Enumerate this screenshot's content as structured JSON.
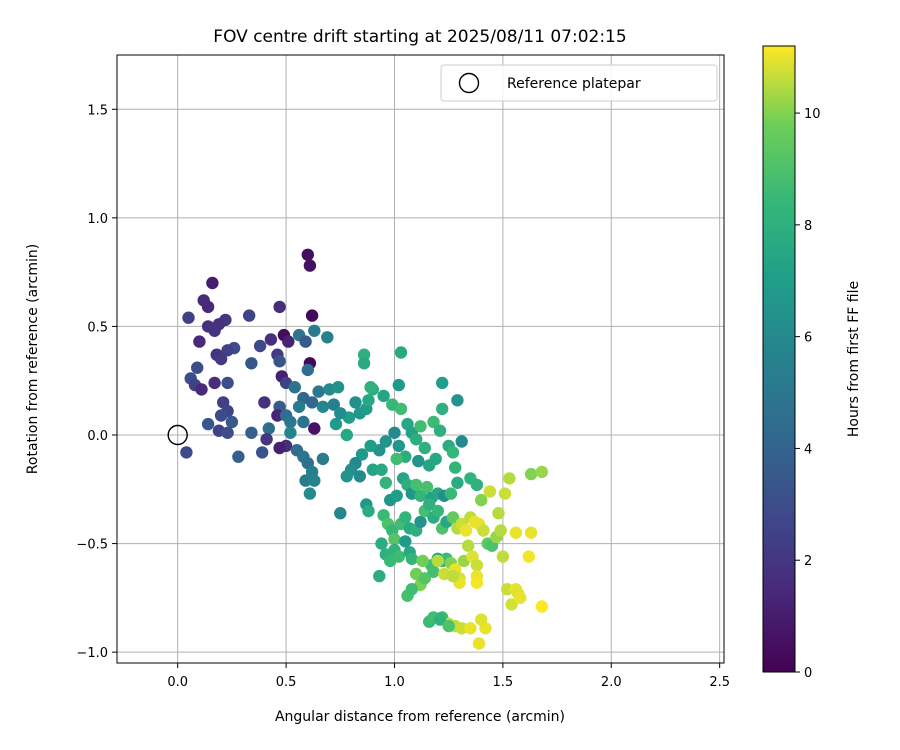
{
  "chart_data": {
    "type": "scatter",
    "title": "FOV centre drift starting at 2025/08/11 07:02:15",
    "xlabel": "Angular distance from reference (arcmin)",
    "ylabel": "Rotation from reference (arcmin)",
    "xlim": [
      -0.28,
      2.52
    ],
    "ylim": [
      -1.05,
      1.75
    ],
    "xticks": [
      0.0,
      0.5,
      1.0,
      1.5,
      2.0,
      2.5
    ],
    "xtick_labels": [
      "0.0",
      "0.5",
      "1.0",
      "1.5",
      "2.0",
      "2.5"
    ],
    "yticks": [
      -1.0,
      -0.5,
      0.0,
      0.5,
      1.0,
      1.5
    ],
    "ytick_labels": [
      "−1.0",
      "−0.5",
      "0.0",
      "0.5",
      "1.0",
      "1.5"
    ],
    "grid": true,
    "colormap": "viridis",
    "colorbar": {
      "label": "Hours from first FF file",
      "range": [
        0,
        11.2
      ],
      "ticks": [
        0,
        2,
        4,
        6,
        8,
        10
      ],
      "tick_labels": [
        "0",
        "2",
        "4",
        "6",
        "8",
        "10"
      ]
    },
    "legend": {
      "position": "top-right",
      "label": "Reference platepar"
    },
    "reference_point": {
      "x": 0.0,
      "y": 0.0
    },
    "points": [
      [
        0.6,
        0.83,
        0.5
      ],
      [
        0.61,
        0.78,
        0.6
      ],
      [
        0.16,
        0.7,
        1.0
      ],
      [
        0.12,
        0.62,
        1.5
      ],
      [
        0.14,
        0.59,
        1.4
      ],
      [
        0.47,
        0.59,
        1.6
      ],
      [
        0.05,
        0.54,
        2.5
      ],
      [
        0.62,
        0.55,
        0.3
      ],
      [
        0.22,
        0.53,
        2.0
      ],
      [
        0.33,
        0.55,
        2.6
      ],
      [
        0.19,
        0.51,
        1.8
      ],
      [
        0.14,
        0.5,
        1.7
      ],
      [
        0.17,
        0.48,
        1.9
      ],
      [
        0.49,
        0.46,
        0.4
      ],
      [
        0.43,
        0.44,
        1.7
      ],
      [
        0.56,
        0.46,
        4.9
      ],
      [
        0.59,
        0.43,
        3.5
      ],
      [
        0.51,
        0.43,
        1.2
      ],
      [
        0.1,
        0.43,
        1.5
      ],
      [
        0.38,
        0.41,
        2.8
      ],
      [
        0.63,
        0.48,
        5.2
      ],
      [
        0.69,
        0.45,
        5.5
      ],
      [
        0.26,
        0.4,
        3.0
      ],
      [
        0.23,
        0.39,
        2.5
      ],
      [
        0.18,
        0.37,
        1.9
      ],
      [
        0.2,
        0.35,
        2.2
      ],
      [
        0.46,
        0.37,
        2.2
      ],
      [
        0.47,
        0.34,
        3.3
      ],
      [
        0.34,
        0.33,
        3.4
      ],
      [
        0.09,
        0.31,
        3.0
      ],
      [
        0.61,
        0.33,
        0.2
      ],
      [
        0.06,
        0.26,
        3.1
      ],
      [
        0.08,
        0.23,
        2.5
      ],
      [
        0.11,
        0.21,
        1.5
      ],
      [
        0.17,
        0.24,
        1.6
      ],
      [
        0.23,
        0.24,
        3.0
      ],
      [
        0.48,
        0.27,
        1.1
      ],
      [
        0.5,
        0.24,
        2.5
      ],
      [
        0.6,
        0.3,
        4.5
      ],
      [
        0.65,
        0.2,
        5.0
      ],
      [
        0.7,
        0.21,
        6.0
      ],
      [
        0.54,
        0.22,
        4.8
      ],
      [
        0.4,
        0.15,
        1.8
      ],
      [
        0.58,
        0.17,
        4.2
      ],
      [
        0.56,
        0.13,
        5.3
      ],
      [
        0.62,
        0.15,
        4.1
      ],
      [
        0.67,
        0.13,
        5.8
      ],
      [
        0.72,
        0.14,
        5.5
      ],
      [
        0.21,
        0.15,
        2.4
      ],
      [
        0.23,
        0.11,
        2.6
      ],
      [
        0.2,
        0.09,
        2.9
      ],
      [
        0.25,
        0.06,
        3.5
      ],
      [
        0.14,
        0.05,
        3.4
      ],
      [
        0.19,
        0.02,
        2.5
      ],
      [
        0.23,
        0.01,
        3.0
      ],
      [
        0.34,
        0.01,
        3.8
      ],
      [
        0.42,
        0.03,
        4.5
      ],
      [
        0.47,
        0.13,
        3.6
      ],
      [
        0.46,
        0.09,
        1.3
      ],
      [
        0.5,
        0.09,
        4.5
      ],
      [
        0.52,
        0.06,
        5.0
      ],
      [
        0.58,
        0.06,
        4.8
      ],
      [
        0.63,
        0.03,
        0.6
      ],
      [
        0.52,
        0.01,
        5.7
      ],
      [
        0.41,
        -0.02,
        2.0
      ],
      [
        0.5,
        -0.05,
        1.6
      ],
      [
        0.47,
        -0.06,
        1.1
      ],
      [
        0.39,
        -0.08,
        3.3
      ],
      [
        0.04,
        -0.08,
        2.9
      ],
      [
        0.28,
        -0.1,
        3.8
      ],
      [
        0.55,
        -0.07,
        4.4
      ],
      [
        0.58,
        -0.1,
        4.9
      ],
      [
        0.6,
        -0.13,
        4.7
      ],
      [
        0.62,
        -0.17,
        5.5
      ],
      [
        0.59,
        -0.21,
        5.3
      ],
      [
        0.63,
        -0.21,
        5.6
      ],
      [
        0.61,
        -0.27,
        6.1
      ],
      [
        0.67,
        -0.11,
        5.3
      ],
      [
        0.74,
        0.22,
        6.4
      ],
      [
        0.73,
        0.05,
        6.8
      ],
      [
        0.79,
        0.08,
        7.0
      ],
      [
        0.75,
        0.1,
        6.1
      ],
      [
        0.82,
        0.15,
        6.3
      ],
      [
        0.84,
        0.1,
        6.6
      ],
      [
        0.87,
        0.12,
        6.9
      ],
      [
        0.88,
        0.16,
        7.5
      ],
      [
        0.9,
        0.21,
        7.8
      ],
      [
        0.86,
        0.37,
        8.0
      ],
      [
        0.86,
        0.33,
        7.6
      ],
      [
        0.89,
        0.22,
        8.0
      ],
      [
        0.95,
        0.18,
        7.4
      ],
      [
        0.99,
        0.14,
        8.4
      ],
      [
        1.02,
        0.23,
        6.8
      ],
      [
        1.03,
        0.38,
        7.6
      ],
      [
        1.03,
        0.12,
        8.7
      ],
      [
        1.06,
        0.05,
        7.5
      ],
      [
        1.08,
        0.01,
        7.2
      ],
      [
        1.1,
        -0.02,
        7.9
      ],
      [
        1.12,
        0.04,
        8.7
      ],
      [
        1.14,
        -0.06,
        8.0
      ],
      [
        1.18,
        0.06,
        8.6
      ],
      [
        1.21,
        0.02,
        8.0
      ],
      [
        1.22,
        0.12,
        8.0
      ],
      [
        1.22,
        0.24,
        7.0
      ],
      [
        1.29,
        0.16,
        6.5
      ],
      [
        1.31,
        -0.03,
        6.0
      ],
      [
        1.25,
        -0.05,
        7.7
      ],
      [
        1.27,
        -0.08,
        8.4
      ],
      [
        1.28,
        -0.15,
        8.3
      ],
      [
        1.19,
        -0.11,
        7.5
      ],
      [
        1.16,
        -0.14,
        7.4
      ],
      [
        1.11,
        -0.12,
        6.5
      ],
      [
        1.05,
        -0.1,
        7.8
      ],
      [
        1.02,
        -0.05,
        6.6
      ],
      [
        1.0,
        0.01,
        6.0
      ],
      [
        0.96,
        -0.03,
        6.5
      ],
      [
        0.93,
        -0.07,
        6.5
      ],
      [
        0.89,
        -0.05,
        7.0
      ],
      [
        0.85,
        -0.09,
        6.8
      ],
      [
        0.82,
        -0.13,
        5.9
      ],
      [
        0.8,
        -0.16,
        6.2
      ],
      [
        0.78,
        -0.19,
        6.5
      ],
      [
        0.84,
        -0.19,
        6.0
      ],
      [
        0.87,
        -0.32,
        6.6
      ],
      [
        0.88,
        -0.35,
        7.7
      ],
      [
        0.75,
        -0.36,
        5.8
      ],
      [
        0.78,
        0.0,
        7.5
      ],
      [
        0.9,
        -0.16,
        7.3
      ],
      [
        0.94,
        -0.16,
        7.6
      ],
      [
        0.96,
        -0.22,
        8.2
      ],
      [
        0.98,
        -0.3,
        6.6
      ],
      [
        1.01,
        -0.28,
        7.0
      ],
      [
        1.01,
        -0.11,
        8.7
      ],
      [
        1.04,
        -0.2,
        7.4
      ],
      [
        1.06,
        -0.23,
        7.9
      ],
      [
        1.08,
        -0.27,
        6.5
      ],
      [
        1.1,
        -0.23,
        8.8
      ],
      [
        1.12,
        -0.28,
        8.3
      ],
      [
        1.15,
        -0.24,
        8.9
      ],
      [
        1.17,
        -0.29,
        7.2
      ],
      [
        1.2,
        -0.27,
        7.5
      ],
      [
        1.23,
        -0.28,
        6.3
      ],
      [
        1.26,
        -0.27,
        8.5
      ],
      [
        1.29,
        -0.22,
        7.7
      ],
      [
        1.35,
        -0.2,
        8.2
      ],
      [
        1.38,
        -0.23,
        8.0
      ],
      [
        1.4,
        -0.3,
        10.0
      ],
      [
        1.44,
        -0.26,
        10.7
      ],
      [
        1.48,
        -0.36,
        10.5
      ],
      [
        1.51,
        -0.27,
        10.7
      ],
      [
        1.53,
        -0.2,
        10.5
      ],
      [
        1.56,
        -0.45,
        11.0
      ],
      [
        1.63,
        -0.18,
        10.0
      ],
      [
        1.63,
        -0.45,
        11.0
      ],
      [
        1.68,
        -0.17,
        10.2
      ],
      [
        0.95,
        -0.37,
        8.5
      ],
      [
        0.97,
        -0.41,
        9.0
      ],
      [
        0.99,
        -0.44,
        8.4
      ],
      [
        1.0,
        -0.48,
        9.2
      ],
      [
        1.03,
        -0.41,
        8.7
      ],
      [
        1.05,
        -0.38,
        8.2
      ],
      [
        1.07,
        -0.43,
        7.7
      ],
      [
        1.1,
        -0.44,
        8.0
      ],
      [
        1.12,
        -0.4,
        6.5
      ],
      [
        1.14,
        -0.35,
        8.8
      ],
      [
        1.16,
        -0.32,
        8.0
      ],
      [
        1.18,
        -0.38,
        7.8
      ],
      [
        1.2,
        -0.35,
        8.4
      ],
      [
        1.22,
        -0.43,
        9.0
      ],
      [
        1.24,
        -0.4,
        7.5
      ],
      [
        1.27,
        -0.38,
        9.5
      ],
      [
        1.29,
        -0.43,
        10.5
      ],
      [
        1.31,
        -0.41,
        10.7
      ],
      [
        1.33,
        -0.44,
        11.0
      ],
      [
        1.35,
        -0.38,
        10.6
      ],
      [
        1.37,
        -0.4,
        11.0
      ],
      [
        1.39,
        -0.41,
        11.0
      ],
      [
        1.41,
        -0.44,
        10.7
      ],
      [
        1.43,
        -0.5,
        9.4
      ],
      [
        1.45,
        -0.51,
        9.0
      ],
      [
        1.47,
        -0.47,
        10.2
      ],
      [
        1.49,
        -0.44,
        10.5
      ],
      [
        1.5,
        -0.56,
        10.6
      ],
      [
        1.52,
        -0.71,
        10.7
      ],
      [
        1.54,
        -0.78,
        10.8
      ],
      [
        1.56,
        -0.71,
        11.0
      ],
      [
        1.57,
        -0.73,
        10.9
      ],
      [
        1.58,
        -0.75,
        11.0
      ],
      [
        1.62,
        -0.56,
        11.1
      ],
      [
        1.68,
        -0.79,
        11.2
      ],
      [
        0.94,
        -0.5,
        7.8
      ],
      [
        0.96,
        -0.55,
        8.0
      ],
      [
        0.98,
        -0.58,
        8.5
      ],
      [
        1.0,
        -0.53,
        8.2
      ],
      [
        1.02,
        -0.56,
        8.6
      ],
      [
        1.05,
        -0.49,
        6.9
      ],
      [
        1.07,
        -0.54,
        7.5
      ],
      [
        1.08,
        -0.57,
        8.3
      ],
      [
        1.1,
        -0.64,
        9.8
      ],
      [
        1.12,
        -0.69,
        9.9
      ],
      [
        1.14,
        -0.66,
        9.2
      ],
      [
        1.17,
        -0.6,
        8.7
      ],
      [
        1.18,
        -0.63,
        8.8
      ],
      [
        1.2,
        -0.57,
        7.6
      ],
      [
        1.22,
        -0.58,
        7.8
      ],
      [
        1.23,
        -0.64,
        10.7
      ],
      [
        1.24,
        -0.57,
        8.6
      ],
      [
        1.26,
        -0.59,
        10.0
      ],
      [
        1.28,
        -0.62,
        11.0
      ],
      [
        1.3,
        -0.66,
        10.8
      ],
      [
        1.32,
        -0.58,
        10.2
      ],
      [
        1.34,
        -0.51,
        10.5
      ],
      [
        1.36,
        -0.56,
        10.9
      ],
      [
        1.38,
        -0.6,
        10.7
      ],
      [
        1.38,
        -0.65,
        11.0
      ],
      [
        1.38,
        -0.68,
        11.1
      ],
      [
        1.3,
        -0.68,
        11.0
      ],
      [
        1.27,
        -0.65,
        10.6
      ],
      [
        1.2,
        -0.58,
        10.5
      ],
      [
        1.13,
        -0.58,
        9.8
      ],
      [
        0.93,
        -0.65,
        7.8
      ],
      [
        1.06,
        -0.74,
        8.8
      ],
      [
        1.08,
        -0.71,
        8.7
      ],
      [
        1.16,
        -0.86,
        8.5
      ],
      [
        1.18,
        -0.84,
        8.7
      ],
      [
        1.22,
        -0.84,
        8.6
      ],
      [
        1.25,
        -0.87,
        10.6
      ],
      [
        1.28,
        -0.88,
        10.6
      ],
      [
        1.31,
        -0.89,
        10.7
      ],
      [
        1.35,
        -0.89,
        11.0
      ],
      [
        1.39,
        -0.96,
        11.0
      ],
      [
        1.42,
        -0.89,
        11.0
      ],
      [
        1.4,
        -0.85,
        10.9
      ],
      [
        1.21,
        -0.85,
        8.1
      ],
      [
        1.25,
        -0.88,
        9.0
      ]
    ]
  }
}
